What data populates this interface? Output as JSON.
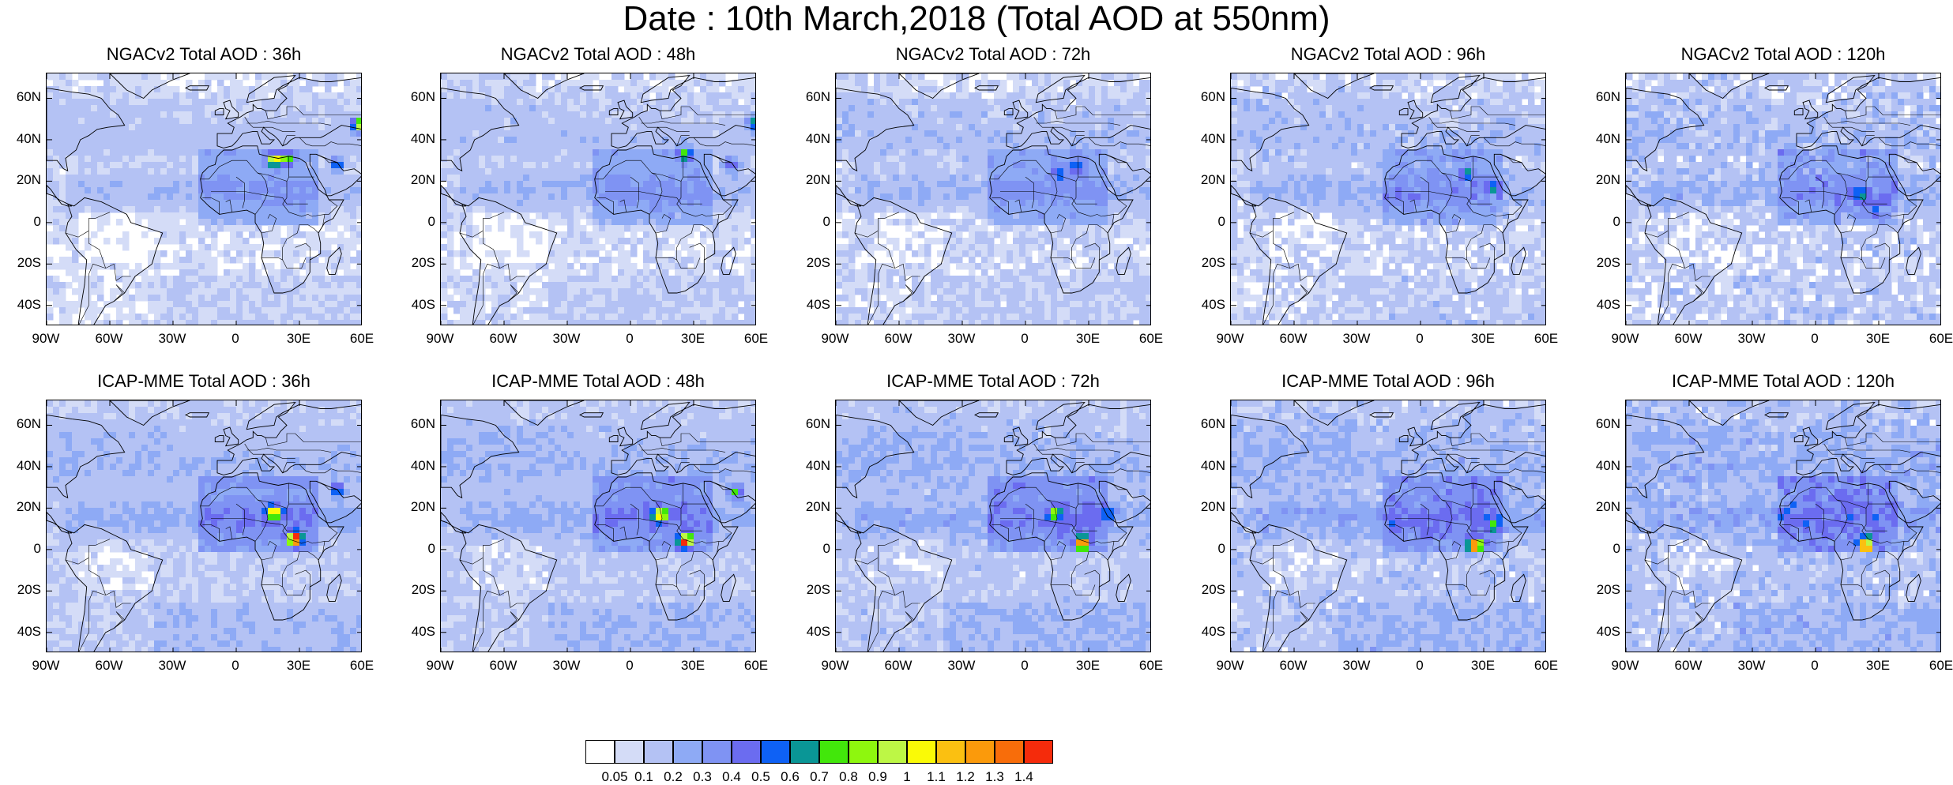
{
  "title": "Date : 10th March,2018 (Total AOD at 550nm)",
  "panels": [
    {
      "title": "NGACv2 Total AOD : 36h",
      "model": "NGACv2",
      "hour": "36h"
    },
    {
      "title": "NGACv2 Total AOD : 48h",
      "model": "NGACv2",
      "hour": "48h"
    },
    {
      "title": "NGACv2 Total AOD : 72h",
      "model": "NGACv2",
      "hour": "72h"
    },
    {
      "title": "NGACv2 Total AOD : 96h",
      "model": "NGACv2",
      "hour": "96h"
    },
    {
      "title": "NGACv2 Total AOD : 120h",
      "model": "NGACv2",
      "hour": "120h"
    },
    {
      "title": "ICAP-MME Total AOD : 36h",
      "model": "ICAP-MME",
      "hour": "36h"
    },
    {
      "title": "ICAP-MME Total AOD : 48h",
      "model": "ICAP-MME",
      "hour": "48h"
    },
    {
      "title": "ICAP-MME Total AOD : 72h",
      "model": "ICAP-MME",
      "hour": "72h"
    },
    {
      "title": "ICAP-MME Total AOD : 96h",
      "model": "ICAP-MME",
      "hour": "96h"
    },
    {
      "title": "ICAP-MME Total AOD : 120h",
      "model": "ICAP-MME",
      "hour": "120h"
    }
  ],
  "lat_ticks": [
    "60N",
    "40N",
    "20N",
    "0",
    "20S",
    "40S"
  ],
  "lon_ticks": [
    "90W",
    "60W",
    "30W",
    "0",
    "30E",
    "60E"
  ],
  "colorbar": {
    "labels": [
      "0.05",
      "0.1",
      "0.2",
      "0.3",
      "0.4",
      "0.5",
      "0.6",
      "0.7",
      "0.8",
      "0.9",
      "1",
      "1.1",
      "1.2",
      "1.3",
      "1.4"
    ],
    "colors": [
      "#ffffff",
      "#d4dcf7",
      "#b4c2f4",
      "#8eaaf5",
      "#7f93f3",
      "#6b6cf0",
      "#0e61f5",
      "#0a9696",
      "#42e70b",
      "#8ef70e",
      "#bdf745",
      "#fafa06",
      "#fbc011",
      "#fb9a0b",
      "#f86d0a",
      "#f52b0b"
    ]
  },
  "colors": {
    "ocean_base": "#ffffff",
    "aod_low": "#d4dcf7",
    "aod_mid": "#b4c2f4",
    "aod_high": "#8eaaf5",
    "coastline": "#000000"
  }
}
